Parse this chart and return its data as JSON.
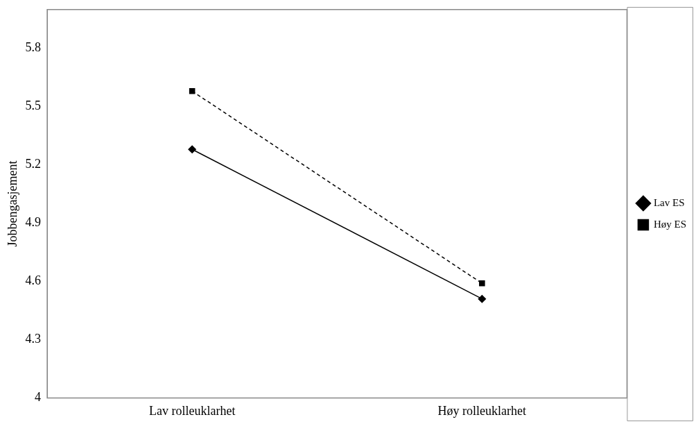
{
  "chart_data": {
    "type": "line",
    "ylabel": "Jobbengasjement",
    "categories": [
      "Lav rolleuklarhet",
      "Høy rolleuklarhet"
    ],
    "series": [
      {
        "name": "Lav ES",
        "color": "#000000",
        "values": [
          5.28,
          4.51
        ],
        "marker": "diamond",
        "line_style": "solid"
      },
      {
        "name": "Høy ES",
        "color": "#000000",
        "values": [
          5.58,
          4.59
        ],
        "marker": "square",
        "line_style": "dashed"
      }
    ],
    "ylim": [
      4,
      6
    ],
    "yticks": [
      4,
      4.3,
      4.6,
      4.9,
      5.2,
      5.5,
      5.8
    ],
    "grid": false,
    "legend": "right"
  }
}
